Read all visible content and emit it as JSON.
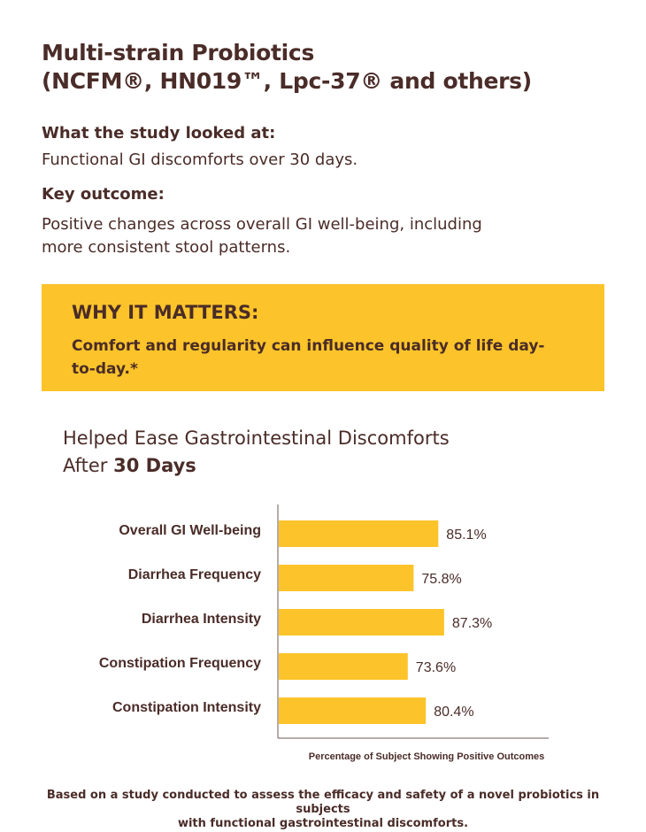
{
  "header": {
    "title_line1": "Multi-strain Probiotics",
    "title_line2": "(NCFM®, HN019™, Lpc-37® and others)"
  },
  "study": {
    "looked_at_label": "What the study looked at:",
    "looked_at_text": "Functional GI discomforts over 30 days.",
    "outcome_label": "Key outcome:",
    "outcome_line1": "Positive changes across overall GI well-being, including",
    "outcome_line2": "more consistent stool patterns."
  },
  "callout": {
    "title": "WHY IT MATTERS:",
    "text": "Comfort and regularity can influence quality of life day-to-day.*"
  },
  "colors": {
    "brand_brown": "#4a2c28",
    "accent_yellow": "#fcc42a"
  },
  "chart_data": {
    "type": "bar",
    "orientation": "horizontal",
    "title_line1": "Helped Ease Gastrointestinal Discomforts",
    "title_line2_prefix": "After ",
    "title_line2_bold": "30 Days",
    "categories": [
      "Overall GI Well-being",
      "Diarrhea Frequency",
      "Diarrhea Intensity",
      "Constipation Frequency",
      "Constipation Intensity"
    ],
    "values": [
      85.1,
      75.8,
      87.3,
      73.6,
      80.4
    ],
    "value_labels": [
      "85.1%",
      "75.8%",
      "87.3%",
      "73.6%",
      "80.4%"
    ],
    "xlabel": "Percentage of Subject Showing Positive Outcomes",
    "grid": false
  },
  "footnote": {
    "line1": "Based on a study conducted to assess the efficacy and safety of a novel probiotics in subjects",
    "line2": "with functional gastrointestinal discomforts."
  }
}
